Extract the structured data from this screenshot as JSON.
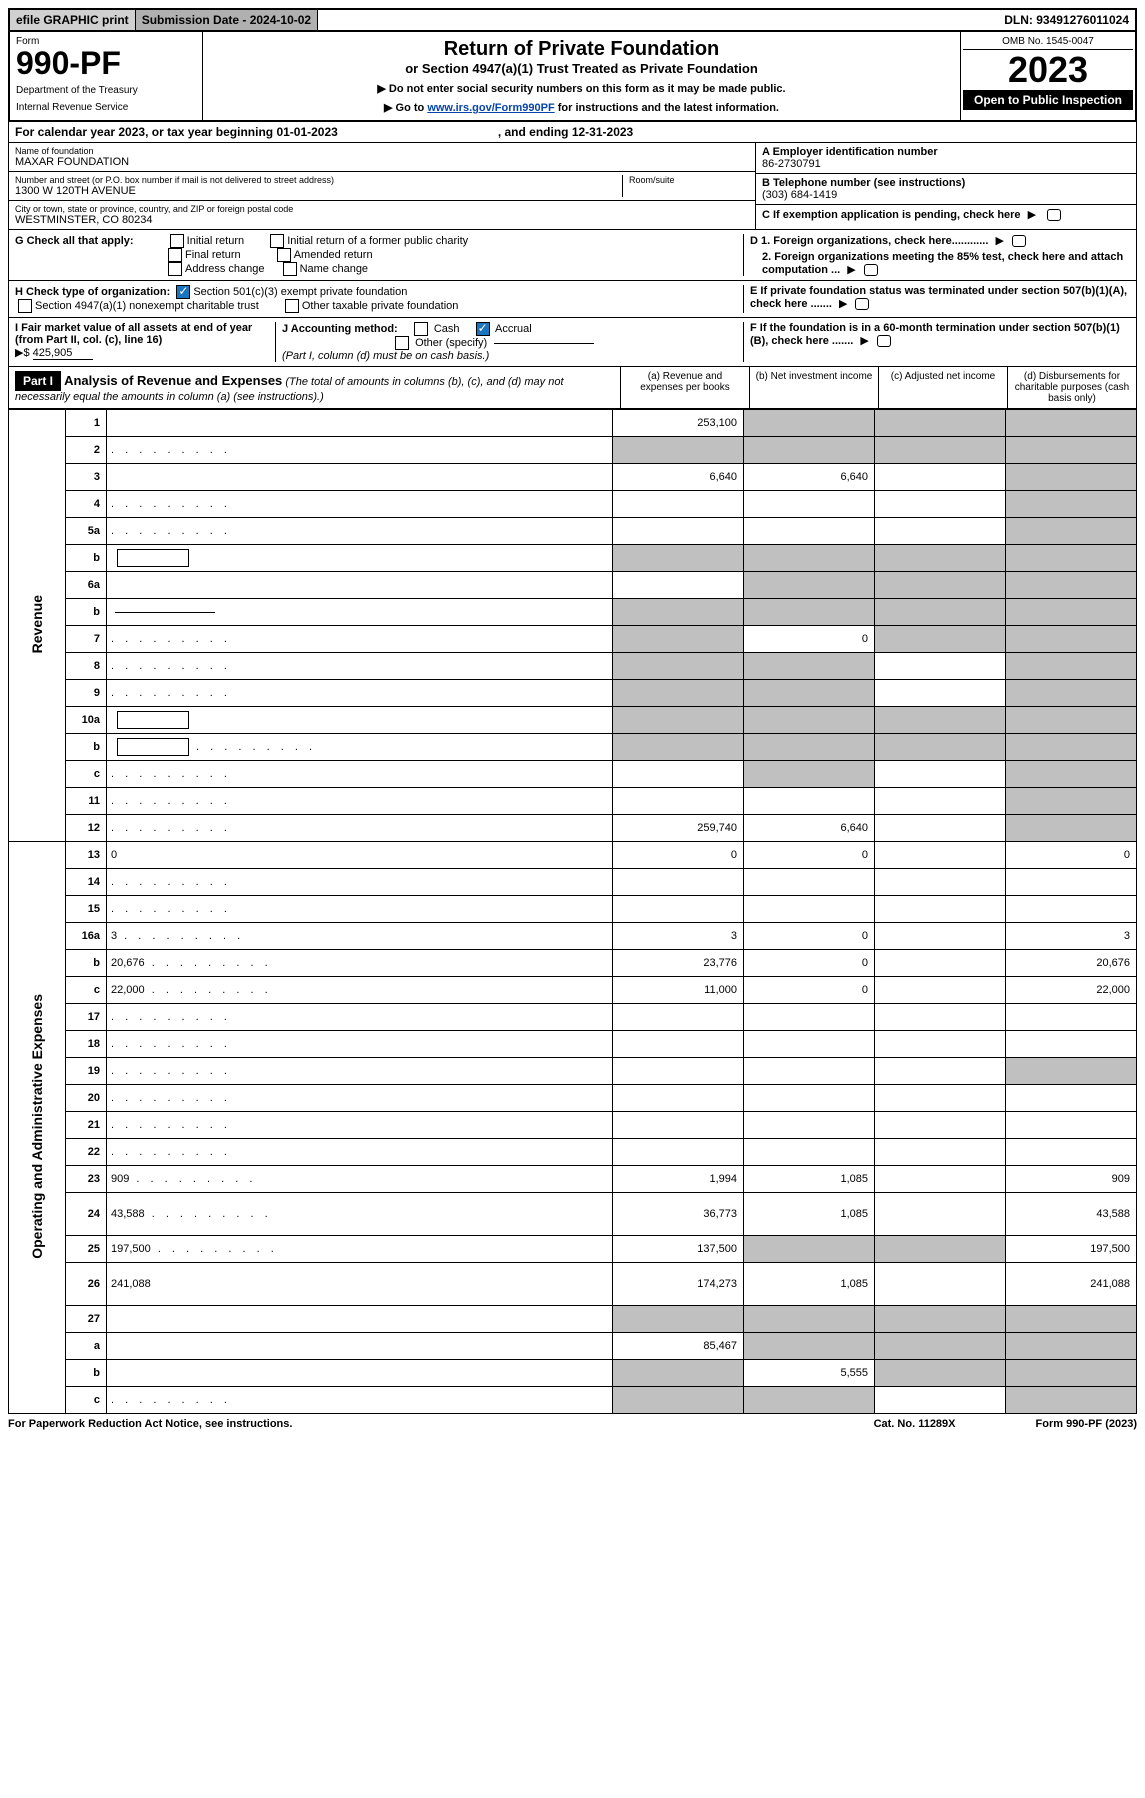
{
  "top": {
    "efile": "efile GRAPHIC print",
    "submission_label": "Submission Date - 2024-10-02",
    "dln": "DLN: 93491276011024"
  },
  "header": {
    "form": "Form",
    "form_num": "990-PF",
    "dept1": "Department of the Treasury",
    "dept2": "Internal Revenue Service",
    "title": "Return of Private Foundation",
    "subtitle": "or Section 4947(a)(1) Trust Treated as Private Foundation",
    "inst1": "▶ Do not enter social security numbers on this form as it may be made public.",
    "inst2_pre": "▶ Go to ",
    "inst2_link": "www.irs.gov/Form990PF",
    "inst2_post": " for instructions and the latest information.",
    "omb": "OMB No. 1545-0047",
    "year": "2023",
    "open": "Open to Public Inspection"
  },
  "cal": {
    "text": "For calendar year 2023, or tax year beginning 01-01-2023",
    "ending": ", and ending 12-31-2023"
  },
  "info": {
    "name_label": "Name of foundation",
    "name": "MAXAR FOUNDATION",
    "addr_label": "Number and street (or P.O. box number if mail is not delivered to street address)",
    "addr": "1300 W 120TH AVENUE",
    "room_label": "Room/suite",
    "city_label": "City or town, state or province, country, and ZIP or foreign postal code",
    "city": "WESTMINSTER, CO  80234",
    "a_label": "A Employer identification number",
    "a_value": "86-2730791",
    "b_label": "B Telephone number (see instructions)",
    "b_value": "(303) 684-1419",
    "c_label": "C If exemption application is pending, check here"
  },
  "g": {
    "label": "G Check all that apply:",
    "opts": [
      "Initial return",
      "Initial return of a former public charity",
      "Final return",
      "Amended return",
      "Address change",
      "Name change"
    ]
  },
  "h": {
    "label": "H Check type of organization:",
    "opt1": "Section 501(c)(3) exempt private foundation",
    "opt2": "Section 4947(a)(1) nonexempt charitable trust",
    "opt3": "Other taxable private foundation"
  },
  "d": {
    "d1": "D 1. Foreign organizations, check here............",
    "d2": "2. Foreign organizations meeting the 85% test, check here and attach computation ..."
  },
  "e": {
    "label": "E  If private foundation status was terminated under section 507(b)(1)(A), check here ......."
  },
  "i": {
    "label": "I Fair market value of all assets at end of year (from Part II, col. (c), line 16)",
    "arrow": "▶$",
    "value": "425,905"
  },
  "j": {
    "label": "J Accounting method:",
    "cash": "Cash",
    "accrual": "Accrual",
    "other": "Other (specify)",
    "note": "(Part I, column (d) must be on cash basis.)"
  },
  "f": {
    "label": "F  If the foundation is in a 60-month termination under section 507(b)(1)(B), check here ......."
  },
  "part1": {
    "label": "Part I",
    "title": "Analysis of Revenue and Expenses",
    "note": "(The total of amounts in columns (b), (c), and (d) may not necessarily equal the amounts in column (a) (see instructions).)",
    "col_a": "(a)   Revenue and expenses per books",
    "col_b": "(b)   Net investment income",
    "col_c": "(c)   Adjusted net income",
    "col_d": "(d)   Disbursements for charitable purposes (cash basis only)"
  },
  "sections": {
    "revenue": "Revenue",
    "operating": "Operating and Administrative Expenses"
  },
  "rows": [
    {
      "n": "1",
      "d": "",
      "a": "253,100",
      "b": "",
      "c": "",
      "shade": [
        "b",
        "c",
        "d"
      ]
    },
    {
      "n": "2",
      "d": "",
      "a": "",
      "b": "",
      "c": "",
      "shade": [
        "a",
        "b",
        "c",
        "d"
      ],
      "dots": true
    },
    {
      "n": "3",
      "d": "",
      "a": "6,640",
      "b": "6,640",
      "c": "",
      "shade": [
        "d"
      ]
    },
    {
      "n": "4",
      "d": "",
      "a": "",
      "b": "",
      "c": "",
      "shade": [
        "d"
      ],
      "dots": true
    },
    {
      "n": "5a",
      "d": "",
      "a": "",
      "b": "",
      "c": "",
      "shade": [
        "d"
      ],
      "dots": true
    },
    {
      "n": "b",
      "d": "",
      "a": "",
      "b": "",
      "c": "",
      "shade": [
        "a",
        "b",
        "c",
        "d"
      ],
      "box": true
    },
    {
      "n": "6a",
      "d": "",
      "a": "",
      "b": "",
      "c": "",
      "shade": [
        "b",
        "c",
        "d"
      ]
    },
    {
      "n": "b",
      "d": "",
      "a": "",
      "b": "",
      "c": "",
      "shade": [
        "a",
        "b",
        "c",
        "d"
      ],
      "line": true
    },
    {
      "n": "7",
      "d": "",
      "a": "",
      "b": "0",
      "c": "",
      "shade": [
        "a",
        "c",
        "d"
      ],
      "dots": true
    },
    {
      "n": "8",
      "d": "",
      "a": "",
      "b": "",
      "c": "",
      "shade": [
        "a",
        "b",
        "d"
      ],
      "dots": true
    },
    {
      "n": "9",
      "d": "",
      "a": "",
      "b": "",
      "c": "",
      "shade": [
        "a",
        "b",
        "d"
      ],
      "dots": true
    },
    {
      "n": "10a",
      "d": "",
      "a": "",
      "b": "",
      "c": "",
      "shade": [
        "a",
        "b",
        "c",
        "d"
      ],
      "box": true
    },
    {
      "n": "b",
      "d": "",
      "a": "",
      "b": "",
      "c": "",
      "shade": [
        "a",
        "b",
        "c",
        "d"
      ],
      "box": true,
      "dots": true
    },
    {
      "n": "c",
      "d": "",
      "a": "",
      "b": "",
      "c": "",
      "shade": [
        "b",
        "d"
      ],
      "dots": true
    },
    {
      "n": "11",
      "d": "",
      "a": "",
      "b": "",
      "c": "",
      "shade": [
        "d"
      ],
      "dots": true
    },
    {
      "n": "12",
      "d": "",
      "a": "259,740",
      "b": "6,640",
      "c": "",
      "shade": [
        "d"
      ],
      "dots": true
    },
    {
      "n": "13",
      "d": "0",
      "a": "0",
      "b": "0",
      "c": ""
    },
    {
      "n": "14",
      "d": "",
      "a": "",
      "b": "",
      "c": "",
      "dots": true
    },
    {
      "n": "15",
      "d": "",
      "a": "",
      "b": "",
      "c": "",
      "dots": true
    },
    {
      "n": "16a",
      "d": "3",
      "a": "3",
      "b": "0",
      "c": "",
      "dots": true
    },
    {
      "n": "b",
      "d": "20,676",
      "a": "23,776",
      "b": "0",
      "c": "",
      "dots": true
    },
    {
      "n": "c",
      "d": "22,000",
      "a": "11,000",
      "b": "0",
      "c": "",
      "dots": true
    },
    {
      "n": "17",
      "d": "",
      "a": "",
      "b": "",
      "c": "",
      "dots": true
    },
    {
      "n": "18",
      "d": "",
      "a": "",
      "b": "",
      "c": "",
      "dots": true
    },
    {
      "n": "19",
      "d": "",
      "a": "",
      "b": "",
      "c": "",
      "shade": [
        "d"
      ],
      "dots": true
    },
    {
      "n": "20",
      "d": "",
      "a": "",
      "b": "",
      "c": "",
      "dots": true
    },
    {
      "n": "21",
      "d": "",
      "a": "",
      "b": "",
      "c": "",
      "dots": true
    },
    {
      "n": "22",
      "d": "",
      "a": "",
      "b": "",
      "c": "",
      "dots": true
    },
    {
      "n": "23",
      "d": "909",
      "a": "1,994",
      "b": "1,085",
      "c": "",
      "dots": true
    },
    {
      "n": "24",
      "d": "43,588",
      "a": "36,773",
      "b": "1,085",
      "c": "",
      "dots": true,
      "tall": true
    },
    {
      "n": "25",
      "d": "197,500",
      "a": "137,500",
      "b": "",
      "c": "",
      "shade": [
        "b",
        "c"
      ],
      "dots": true
    },
    {
      "n": "26",
      "d": "241,088",
      "a": "174,273",
      "b": "1,085",
      "c": "",
      "tall": true
    },
    {
      "n": "27",
      "d": "",
      "a": "",
      "b": "",
      "c": "",
      "shade": [
        "a",
        "b",
        "c",
        "d"
      ]
    },
    {
      "n": "a",
      "d": "",
      "a": "85,467",
      "b": "",
      "c": "",
      "shade": [
        "b",
        "c",
        "d"
      ]
    },
    {
      "n": "b",
      "d": "",
      "a": "",
      "b": "5,555",
      "c": "",
      "shade": [
        "a",
        "c",
        "d"
      ]
    },
    {
      "n": "c",
      "d": "",
      "a": "",
      "b": "",
      "c": "",
      "shade": [
        "a",
        "b",
        "d"
      ],
      "dots": true
    }
  ],
  "footer": {
    "left": "For Paperwork Reduction Act Notice, see instructions.",
    "mid": "Cat. No. 11289X",
    "right": "Form 990-PF (2023)"
  }
}
